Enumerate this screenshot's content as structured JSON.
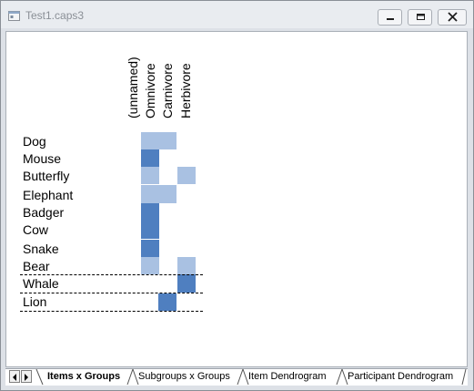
{
  "window": {
    "title": "Test1.caps3"
  },
  "columns": [
    "(unnamed)",
    "Omnivore",
    "Carnivore",
    "Herbivore"
  ],
  "rows": [
    {
      "label": "Dog",
      "cells": [
        "light",
        "light",
        "",
        ""
      ]
    },
    {
      "label": "Mouse",
      "cells": [
        "dark",
        "",
        "",
        ""
      ]
    },
    {
      "label": "Butterfly",
      "cells": [
        "light",
        "",
        "light",
        ""
      ]
    },
    {
      "label": "Elephant",
      "cells": [
        "light",
        "light",
        "",
        ""
      ]
    },
    {
      "label": "Badger",
      "cells": [
        "dark",
        "",
        "",
        ""
      ]
    },
    {
      "label": "Cow",
      "cells": [
        "dark",
        "",
        "",
        ""
      ]
    },
    {
      "label": "Snake",
      "cells": [
        "dark",
        "",
        "",
        ""
      ]
    },
    {
      "label": "Bear",
      "cells": [
        "light",
        "",
        "light",
        ""
      ]
    },
    {
      "label": "Whale",
      "cells": [
        "",
        "",
        "dark",
        ""
      ]
    },
    {
      "label": "Lion",
      "cells": [
        "",
        "dark",
        "",
        ""
      ]
    }
  ],
  "colors": {
    "light": "#a9c1e2",
    "dark": "#4f7fc0"
  },
  "tabs": [
    "Items x Groups",
    "Subgroups x Groups",
    "Item Dendrogram",
    "Participant Dendrogram"
  ],
  "active_tab": 0
}
